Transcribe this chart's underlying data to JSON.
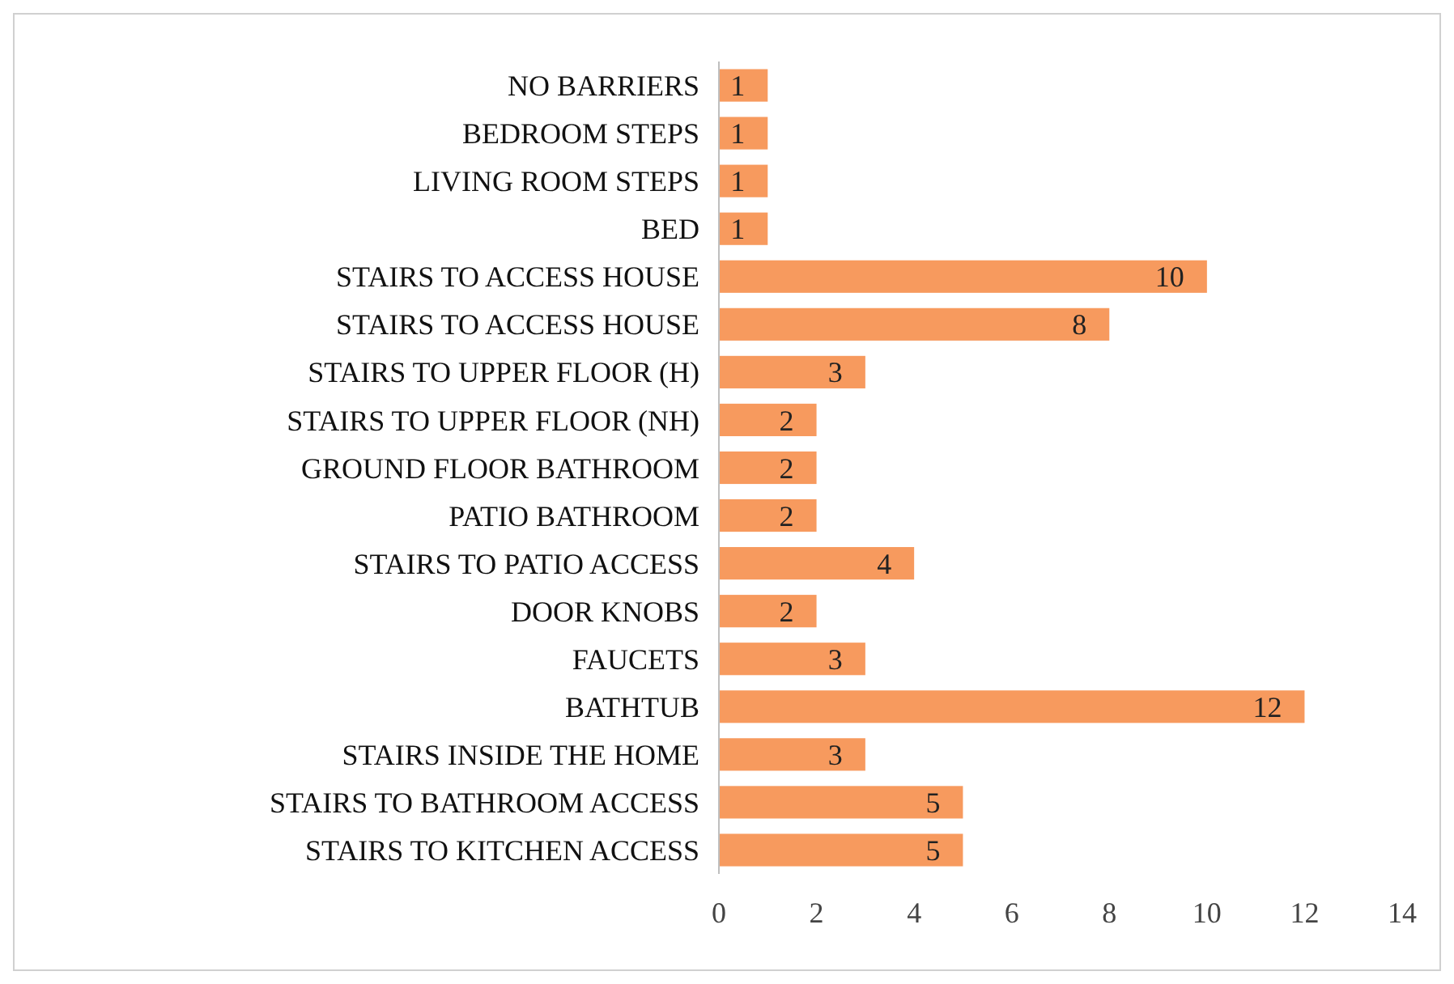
{
  "chart_data": {
    "type": "bar",
    "orientation": "horizontal",
    "categories": [
      "NO BARRIERS",
      "BEDROOM STEPS",
      "LIVING ROOM STEPS",
      "BED",
      "STAIRS TO ACCESS HOUSE",
      "STAIRS TO ACCESS HOUSE",
      "STAIRS TO UPPER FLOOR (H)",
      "STAIRS TO UPPER FLOOR (NH)",
      "GROUND FLOOR BATHROOM",
      "PATIO BATHROOM",
      "STAIRS TO PATIO ACCESS",
      "DOOR KNOBS",
      "FAUCETS",
      "BATHTUB",
      "STAIRS INSIDE THE HOME",
      "STAIRS TO BATHROOM ACCESS",
      "STAIRS TO KITCHEN ACCESS"
    ],
    "values": [
      1,
      1,
      1,
      1,
      10,
      8,
      3,
      2,
      2,
      2,
      4,
      2,
      3,
      12,
      3,
      5,
      5
    ],
    "color": "#f79a5e",
    "xlim": [
      0,
      14
    ],
    "xticks": [
      0,
      2,
      4,
      6,
      8,
      10,
      12,
      14
    ],
    "data_labels": true,
    "grid": false
  }
}
